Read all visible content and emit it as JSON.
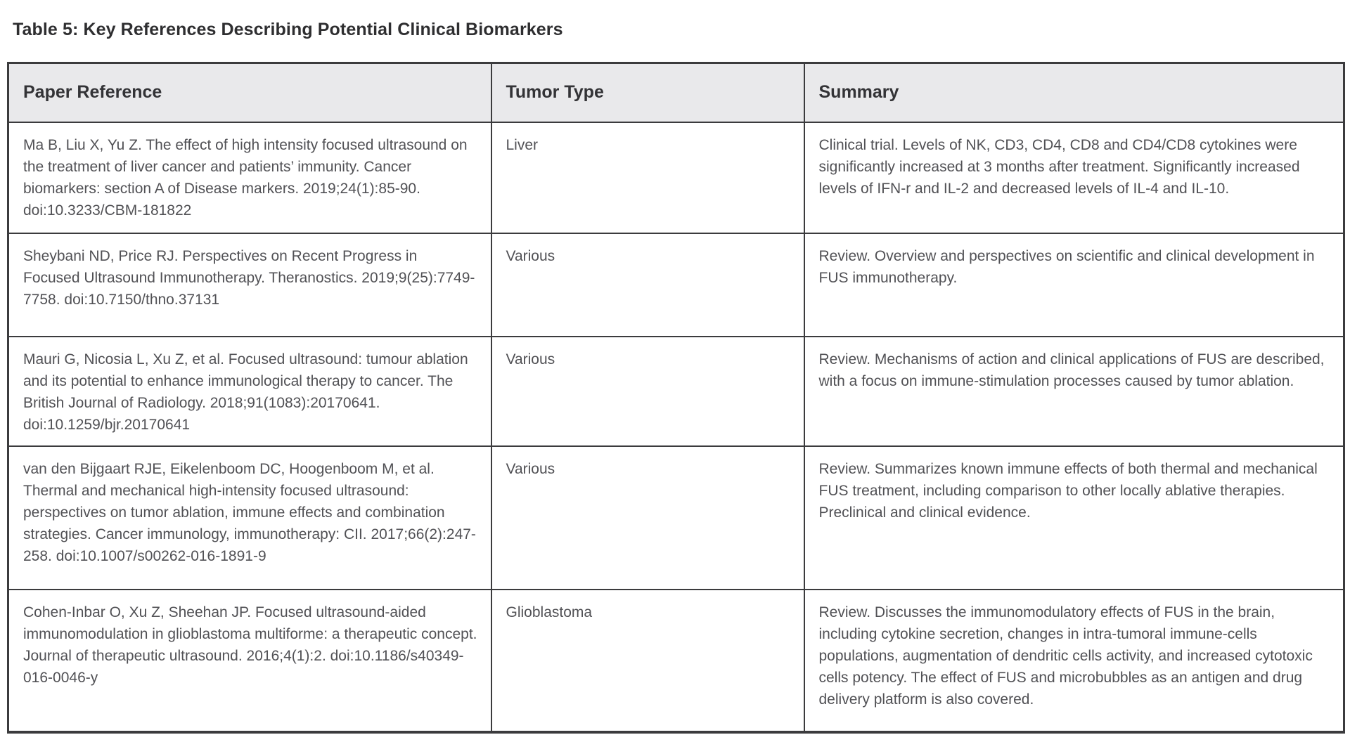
{
  "page": {
    "title": "Table 5: Key References Describing Potential Clinical Biomarkers"
  },
  "table": {
    "headers": {
      "reference": "Paper Reference",
      "tumor_type": "Tumor Type",
      "summary": "Summary"
    },
    "rows": [
      {
        "reference": "Ma B, Liu X, Yu Z. The effect of high intensity focused ultrasound on the treatment of liver cancer and patients’ immunity. Cancer biomarkers: section A of Disease markers. 2019;24(1):85-90. doi:10.3233/CBM-181822",
        "tumor_type": "Liver",
        "summary": "Clinical trial. Levels of NK, CD3, CD4, CD8 and CD4/CD8 cytokines were significantly increased at 3 months after treatment. Significantly increased levels of IFN-r and IL-2 and decreased levels of IL-4 and IL-10."
      },
      {
        "reference": "Sheybani ND, Price RJ. Perspectives on Recent Progress in Focused Ultrasound Immunotherapy. Theranostics. 2019;9(25):7749-7758. doi:10.7150/thno.37131",
        "tumor_type": "Various",
        "summary": "Review. Overview and perspectives on scientific and clinical development in FUS immunotherapy."
      },
      {
        "reference": "Mauri G, Nicosia L, Xu Z, et al. Focused ultrasound: tumour ablation and its potential to enhance immunological therapy to cancer. The British Journal of Radiology. 2018;91(1083):20170641. doi:10.1259/bjr.20170641",
        "tumor_type": "Various",
        "summary": "Review. Mechanisms of action and clinical applications of FUS are described, with a focus on immune-stimulation processes caused by tumor ablation."
      },
      {
        "reference": "van den Bijgaart RJE, Eikelenboom DC, Hoogenboom M, et al. Thermal and mechanical high-intensity focused ultrasound: perspectives on tumor ablation, immune effects and combination strategies. Cancer immunology, immunotherapy: CII. 2017;66(2):247-258. doi:10.1007/s00262-016-1891-9",
        "tumor_type": "Various",
        "summary": "Review. Summarizes known immune effects of both thermal and mechanical FUS treatment, including comparison to other locally ablative therapies. Preclinical and clinical evidence."
      },
      {
        "reference": "Cohen-Inbar O, Xu Z, Sheehan JP. Focused ultrasound-aided immunomodulation in glioblastoma multiforme: a therapeutic concept. Journal of therapeutic ultrasound. 2016;4(1):2. doi:10.1186/s40349-016-0046-y",
        "tumor_type": "Glioblastoma",
        "summary": "Review. Discusses the immunomodulatory effects of FUS in the brain, including cytokine secretion, changes in intra-tumoral immune-cells populations, augmentation of dendritic cells activity, and increased cytotoxic cells potency. The effect of FUS and microbubbles as an antigen and drug delivery platform is also covered."
      }
    ]
  },
  "colors": {
    "header_background": "#e9e9eb",
    "border": "#3b3b3d",
    "title_text": "#2e2e30",
    "body_text": "#515155"
  }
}
